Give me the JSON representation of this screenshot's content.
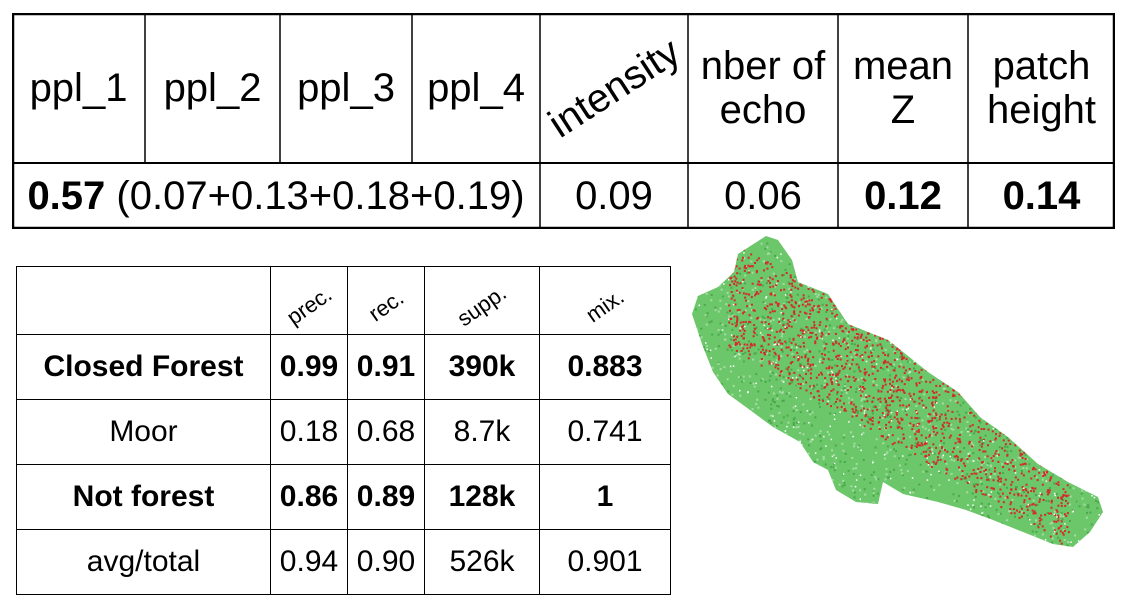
{
  "importance_table": {
    "features": [
      "ppl_1",
      "ppl_2",
      "ppl_3",
      "ppl_4",
      "intensity",
      "nber of echo",
      "mean Z",
      "patch height"
    ],
    "ppl_total": "0.57",
    "ppl_breakdown": "(0.07+0.13+0.18+0.19)",
    "values": [
      "0.09",
      "0.06",
      "0.12",
      "0.14"
    ]
  },
  "classification_table": {
    "columns": [
      "prec.",
      "rec.",
      "supp.",
      "mix."
    ],
    "rows": [
      {
        "label": "Closed Forest",
        "prec": "0.99",
        "rec": "0.91",
        "supp": "390k",
        "mix": "0.883"
      },
      {
        "label": "Moor",
        "prec": "0.18",
        "rec": "0.68",
        "supp": "8.7k",
        "mix": "0.741"
      },
      {
        "label": "Not forest",
        "prec": "0.86",
        "rec": "0.89",
        "supp": "128k",
        "mix": "1"
      },
      {
        "label": "avg/total",
        "prec": "0.94",
        "rec": "0.90",
        "supp": "526k",
        "mix": "0.901"
      }
    ]
  },
  "map": {
    "colors": {
      "forest": "#6cc76a",
      "not_forest": "#d42a2a",
      "background": "#ffffff"
    }
  }
}
